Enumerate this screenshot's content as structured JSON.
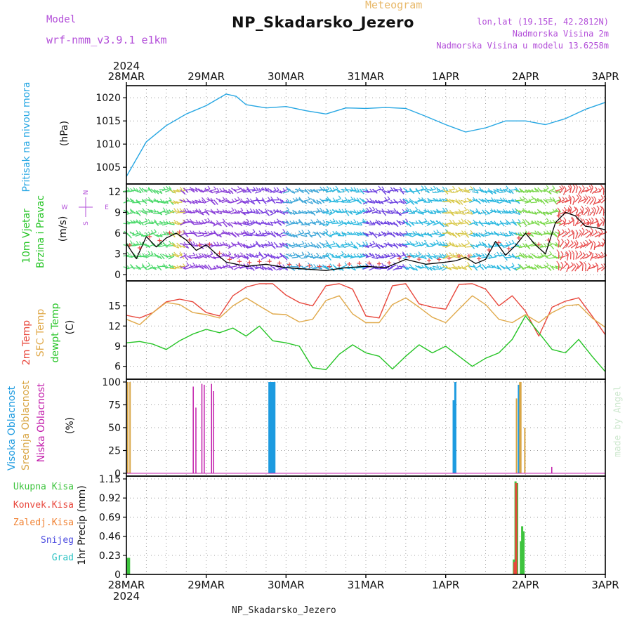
{
  "header": {
    "title": "NP_Skadarsko_Jezero",
    "meteogram_label": "Meteogram",
    "model_label": "Model",
    "model_name": "wrf-nmm_v3.9.1 e1km",
    "lonlat": "lon,lat (19.15E, 42.2812N)",
    "altitude": "Nadmorska Visina 2m",
    "model_altitude": "Nadmorska Visina u modelu 13.6258m",
    "year": "2024",
    "footer": "NP_Skadarsko_Jezero",
    "credit": "made by Angel"
  },
  "time_axis": {
    "labels": [
      "28MAR",
      "29MAR",
      "30MAR",
      "31MAR",
      "1APR",
      "2APR",
      "3APR"
    ],
    "year": "2024"
  },
  "colors": {
    "pressure": "#27a7e3",
    "temp2m": "#e8473c",
    "sfc_temp": "#e0a94a",
    "dewpoint": "#25c425",
    "high_cloud": "#1d9be0",
    "mid_cloud": "#d9a645",
    "low_cloud": "#c21dab",
    "total_precip": "#3ec43e",
    "conv_precip": "#e8473c",
    "frozen_precip": "#f08030",
    "snow": "#4c4ce0",
    "graupel": "#2cc3c3",
    "wind_speed_line": "#000000"
  },
  "panel_labels": {
    "pressure": [
      "Pritisak na nivou mora",
      "(hPa)"
    ],
    "wind": [
      "10m Vjetar",
      "Brzina i Pravac",
      "(m/s)"
    ],
    "temp": [
      "2m Temp",
      "SFC Temp",
      "dewpt Temp",
      "(C)"
    ],
    "cloud": [
      "Visoka Oblacnost",
      "Srednja Oblacnost",
      "Niska Oblacnost",
      "(%)"
    ],
    "precip": [
      "1hr Precip (mm)"
    ],
    "precip_legend": [
      "Ukupna Kisa",
      "Konvek.Kisa",
      "Zaledj.Kisa",
      "Snijeg",
      "Grad"
    ],
    "compass": [
      "N",
      "W",
      "E",
      "S"
    ]
  },
  "chart_data": [
    {
      "type": "line",
      "name": "pressure",
      "ylabel": "(hPa)",
      "ylim": [
        1002,
        1022
      ],
      "yticks": [
        1005,
        1010,
        1015,
        1020
      ],
      "x": [
        0,
        6,
        12,
        18,
        24,
        30,
        33,
        36,
        42,
        48,
        54,
        60,
        66,
        72,
        78,
        84,
        90,
        96,
        102,
        108,
        114,
        120,
        126,
        132,
        138,
        144
      ],
      "series": [
        {
          "name": "Pritisak na nivou mora",
          "values": [
            1003.0,
            1010.5,
            1014.0,
            1016.5,
            1018.3,
            1020.8,
            1020.3,
            1018.5,
            1017.8,
            1018.1,
            1017.2,
            1016.5,
            1017.8,
            1017.7,
            1017.9,
            1017.7,
            1016.0,
            1014.2,
            1012.6,
            1013.5,
            1015.0,
            1015.0,
            1014.2,
            1015.5,
            1017.5,
            1019.0
          ]
        }
      ],
      "grid": true
    },
    {
      "type": "line",
      "name": "wind",
      "ylabel": "(m/s)",
      "ylim": [
        -0.5,
        12.7
      ],
      "yticks": [
        0,
        3,
        6,
        9,
        12
      ],
      "x": [
        0,
        3,
        6,
        9,
        12,
        15,
        18,
        21,
        24,
        27,
        30,
        36,
        42,
        48,
        54,
        60,
        66,
        72,
        78,
        84,
        90,
        96,
        99,
        102,
        105,
        108,
        111,
        114,
        117,
        120,
        123,
        126,
        129,
        132,
        135,
        138,
        141,
        144
      ],
      "series": [
        {
          "name": "speed",
          "values": [
            4.5,
            2.3,
            5.5,
            4.0,
            5.3,
            6.0,
            5.0,
            3.5,
            4.3,
            3.0,
            1.8,
            1.2,
            1.5,
            1.0,
            0.8,
            0.6,
            1.0,
            1.2,
            1.0,
            2.2,
            1.5,
            1.8,
            2.0,
            2.5,
            1.6,
            2.2,
            4.8,
            2.8,
            4.2,
            6.0,
            4.3,
            3.0,
            7.5,
            9.0,
            8.5,
            7.0,
            6.8,
            6.5
          ]
        }
      ],
      "barbs": [
        {
          "from": 0,
          "to": 14,
          "color": "#4ad96a"
        },
        {
          "from": 14,
          "to": 17,
          "color": "#d9c94a"
        },
        {
          "from": 17,
          "to": 36,
          "color": "#8a3fd9"
        },
        {
          "from": 36,
          "to": 48,
          "color": "#7a3fe0"
        },
        {
          "from": 48,
          "to": 60,
          "color": "#3fa7d9"
        },
        {
          "from": 60,
          "to": 72,
          "color": "#2ab8e0"
        },
        {
          "from": 72,
          "to": 84,
          "color": "#6a3fe0"
        },
        {
          "from": 84,
          "to": 96,
          "color": "#2ab8e0"
        },
        {
          "from": 96,
          "to": 104,
          "color": "#d9c94a"
        },
        {
          "from": 104,
          "to": 118,
          "color": "#2ab8e0"
        },
        {
          "from": 118,
          "to": 130,
          "color": "#7ad94a"
        },
        {
          "from": 130,
          "to": 144,
          "color": "#e84a4a"
        }
      ],
      "grid": true
    },
    {
      "type": "line",
      "name": "temperature",
      "ylabel": "(C)",
      "ylim": [
        4.5,
        18.3
      ],
      "yticks": [
        6,
        9,
        12,
        15
      ],
      "x": [
        0,
        4,
        8,
        12,
        16,
        20,
        24,
        28,
        32,
        36,
        40,
        44,
        48,
        52,
        56,
        60,
        64,
        68,
        72,
        76,
        80,
        84,
        88,
        92,
        96,
        100,
        104,
        108,
        112,
        116,
        120,
        124,
        128,
        132,
        136,
        140,
        144
      ],
      "series": [
        {
          "name": "2m Temp",
          "values": [
            13.6,
            13.2,
            14.0,
            15.6,
            16.0,
            15.6,
            14.0,
            13.5,
            16.5,
            17.8,
            18.5,
            18.3,
            16.6,
            15.5,
            15.0,
            18.0,
            18.4,
            17.5,
            13.5,
            13.2,
            18.0,
            18.5,
            15.3,
            14.8,
            14.5,
            18.2,
            19.0,
            17.5,
            15.0,
            16.5,
            14.2,
            10.5,
            14.8,
            15.7,
            16.2,
            13.5,
            10.7
          ]
        },
        {
          "name": "SFC Temp",
          "values": [
            13.0,
            12.2,
            14.0,
            15.5,
            15.2,
            14.0,
            13.7,
            13.2,
            15.0,
            16.2,
            15.0,
            13.8,
            13.7,
            12.6,
            13.0,
            15.8,
            16.5,
            13.8,
            12.5,
            12.5,
            15.2,
            16.2,
            14.8,
            13.3,
            12.5,
            14.5,
            16.5,
            15.2,
            13.0,
            12.5,
            13.7,
            12.5,
            14.0,
            15.0,
            15.2,
            13.2,
            11.8
          ]
        },
        {
          "name": "dewpt Temp",
          "values": [
            9.5,
            9.7,
            9.3,
            8.5,
            9.8,
            10.8,
            11.5,
            11.0,
            11.7,
            10.5,
            12.0,
            9.8,
            9.5,
            9.0,
            5.8,
            5.5,
            7.8,
            9.2,
            8.0,
            7.5,
            5.6,
            7.5,
            9.2,
            8.0,
            9.0,
            7.5,
            6.0,
            7.2,
            8.0,
            10.0,
            13.5,
            11.0,
            8.5,
            8.0,
            10.0,
            7.5,
            5.2
          ]
        }
      ],
      "grid": true
    },
    {
      "type": "bar",
      "name": "cloud",
      "ylabel": "(%)",
      "ylim": [
        0,
        100
      ],
      "yticks": [
        0,
        25,
        50,
        75,
        100
      ],
      "series": [
        {
          "name": "Visoka Oblacnost",
          "x": [
            43.0,
            43.3,
            43.7,
            44.0,
            44.5,
            98.4,
            98.9,
            118.0
          ],
          "values": [
            100,
            100,
            100,
            100,
            100,
            80,
            100,
            97
          ]
        },
        {
          "name": "Srednja Oblacnost",
          "x": [
            0.4,
            1.1,
            117.3,
            118.3,
            118.6,
            119.8
          ],
          "values": [
            100,
            100,
            82,
            100,
            100,
            50
          ]
        },
        {
          "name": "Niska Oblacnost",
          "x": [
            20.1,
            20.9,
            22.7,
            23.4,
            24.2,
            25.6,
            26.2,
            116.9,
            127.9
          ],
          "values": [
            95,
            72,
            98,
            97,
            0,
            98,
            90,
            0,
            7
          ]
        }
      ],
      "grid": true
    },
    {
      "type": "bar",
      "name": "precip",
      "ylabel": "1hr Precip (mm)",
      "ylim": [
        0,
        1.15
      ],
      "yticks": [
        0,
        0.23,
        0.46,
        0.69,
        0.92,
        1.15
      ],
      "series": [
        {
          "name": "Ukupna Kisa",
          "x": [
            0.4,
            0.8,
            116.5,
            117.0,
            117.5,
            118.6,
            119.0,
            119.4
          ],
          "values": [
            0.2,
            0.2,
            0.18,
            1.12,
            1.1,
            0.4,
            0.58,
            0.52
          ]
        },
        {
          "name": "Konvek.Kisa",
          "x": [
            116.7,
            117.2
          ],
          "values": [
            0.15,
            1.1
          ]
        },
        {
          "name": "Zaledj.Kisa",
          "x": [],
          "values": []
        },
        {
          "name": "Snijeg",
          "x": [],
          "values": []
        },
        {
          "name": "Grad",
          "x": [],
          "values": []
        }
      ],
      "grid": true
    }
  ]
}
